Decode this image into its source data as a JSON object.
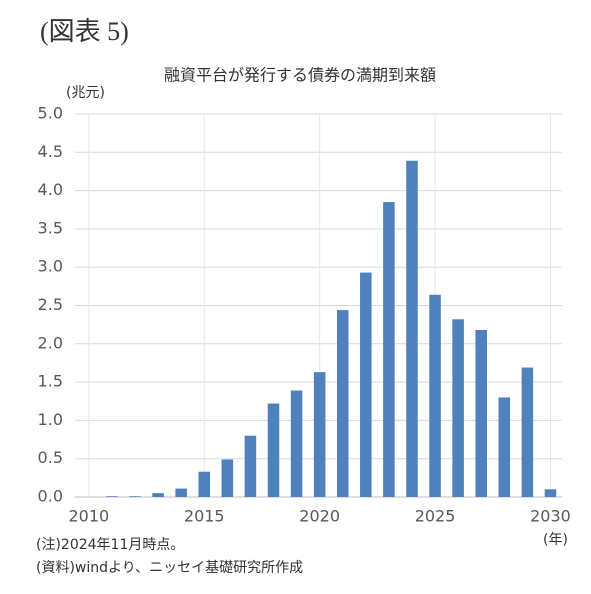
{
  "header": {
    "title": "(図表 5)"
  },
  "chart_data": {
    "type": "bar",
    "title": "融資平台が発行する債券の満期到来額",
    "y_label": "(兆元)",
    "x_label": "(年)",
    "x": [
      2011,
      2012,
      2013,
      2014,
      2015,
      2016,
      2017,
      2018,
      2019,
      2020,
      2021,
      2022,
      2023,
      2024,
      2025,
      2026,
      2027,
      2028,
      2029,
      2030
    ],
    "values": [
      0.01,
      0.01,
      0.05,
      0.11,
      0.33,
      0.49,
      0.8,
      1.22,
      1.39,
      1.63,
      2.44,
      2.93,
      3.85,
      4.39,
      2.64,
      2.32,
      2.18,
      1.3,
      1.69,
      0.1
    ],
    "color": "#4f81bd",
    "xlim": [
      2009.4,
      2030.5
    ],
    "xticks": [
      2010,
      2015,
      2020,
      2025,
      2030
    ],
    "ylim": [
      0,
      5
    ],
    "yticks": [
      {
        "value": 0,
        "label": "0.0"
      },
      {
        "value": 0.5,
        "label": "0.5"
      },
      {
        "value": 1,
        "label": "1.0"
      },
      {
        "value": 1.5,
        "label": "1.5"
      },
      {
        "value": 2,
        "label": "2.0"
      },
      {
        "value": 2.5,
        "label": "2.5"
      },
      {
        "value": 3,
        "label": "3.0"
      },
      {
        "value": 3.5,
        "label": "3.5"
      },
      {
        "value": 4,
        "label": "4.0"
      },
      {
        "value": 4.5,
        "label": "4.5"
      },
      {
        "value": 5,
        "label": "5.0"
      }
    ],
    "grid": true
  },
  "notes": [
    "(注)2024年11月時点。",
    "(資料)windより、ニッセイ基礎研究所作成"
  ]
}
